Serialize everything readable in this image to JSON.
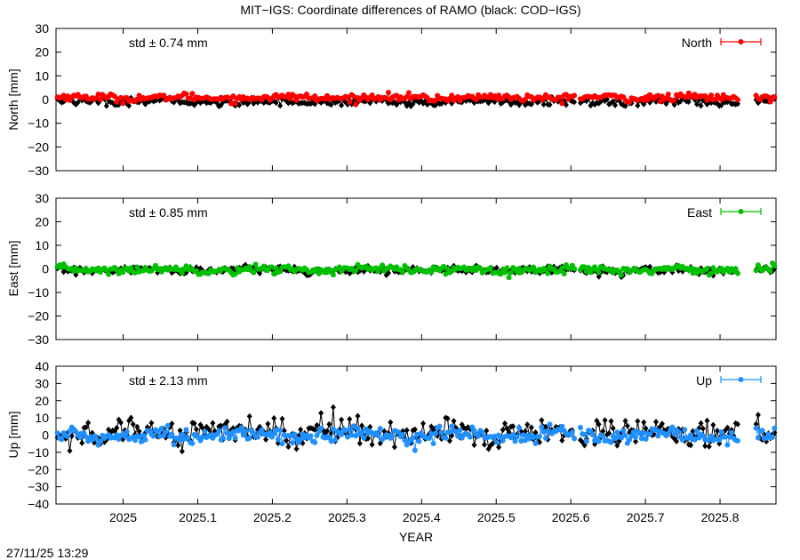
{
  "title": "MIT−IGS: Coordinate differences of RAMO (black: COD−IGS)",
  "xlabel": "YEAR",
  "timestamp": "27/11/25 13:29",
  "chart_data": [
    {
      "type": "line",
      "name": "north",
      "ylabel": "North [mm]",
      "legend": "North",
      "std_text": "std ± 0.74 mm",
      "color": "#ff0000",
      "legend_placement": "top-right",
      "xlim": [
        2024.91,
        2025.875
      ],
      "ylim": [
        -30,
        30
      ],
      "yticks": [
        -30,
        -20,
        -10,
        0,
        10,
        20,
        30
      ],
      "xticks": [
        2025,
        2025.1,
        2025.2,
        2025.3,
        2025.4,
        2025.5,
        2025.6,
        2025.7,
        2025.8
      ],
      "xticklabels": [
        "2025",
        "2025.1",
        "2025.2",
        "2025.3",
        "2025.4",
        "2025.5",
        "2025.6",
        "2025.7",
        "2025.8"
      ],
      "gaps": [
        [
          2025.605,
          2025.612
        ],
        [
          2025.826,
          2025.848
        ]
      ],
      "series": [
        {
          "name": "MIT−IGS",
          "color": "#ff0000",
          "level": 0.8,
          "amplitude": 0.74,
          "wave": 0.4
        },
        {
          "name": "COD−IGS",
          "color": "#000000",
          "level": -0.9,
          "amplitude": 0.8,
          "wave": 0.5
        }
      ]
    },
    {
      "type": "line",
      "name": "east",
      "ylabel": "East [mm]",
      "legend": "East",
      "std_text": "std ± 0.85 mm",
      "color": "#00c000",
      "legend_placement": "top-right",
      "xlim": [
        2024.91,
        2025.875
      ],
      "ylim": [
        -30,
        30
      ],
      "yticks": [
        -30,
        -20,
        -10,
        0,
        10,
        20,
        30
      ],
      "xticks": [
        2025,
        2025.1,
        2025.2,
        2025.3,
        2025.4,
        2025.5,
        2025.6,
        2025.7,
        2025.8
      ],
      "xticklabels": [
        "2025",
        "2025.1",
        "2025.2",
        "2025.3",
        "2025.4",
        "2025.5",
        "2025.6",
        "2025.7",
        "2025.8"
      ],
      "gaps": [
        [
          2025.605,
          2025.612
        ],
        [
          2025.826,
          2025.848
        ]
      ],
      "series": [
        {
          "name": "MIT−IGS",
          "color": "#00c000",
          "level": -0.3,
          "amplitude": 0.85,
          "wave": 0.4
        },
        {
          "name": "COD−IGS",
          "color": "#000000",
          "level": -0.5,
          "amplitude": 0.8,
          "wave": 0.4
        }
      ]
    },
    {
      "type": "line",
      "name": "up",
      "ylabel": "Up [mm]",
      "legend": "Up",
      "std_text": "std ± 2.13 mm",
      "color": "#1e90ff",
      "legend_placement": "top-right",
      "xlim": [
        2024.91,
        2025.875
      ],
      "ylim": [
        -40,
        40
      ],
      "yticks": [
        -40,
        -30,
        -20,
        -10,
        0,
        10,
        20,
        30,
        40
      ],
      "xticks": [
        2025,
        2025.1,
        2025.2,
        2025.3,
        2025.4,
        2025.5,
        2025.6,
        2025.7,
        2025.8
      ],
      "xticklabels": [
        "2025",
        "2025.1",
        "2025.2",
        "2025.3",
        "2025.4",
        "2025.5",
        "2025.6",
        "2025.7",
        "2025.8"
      ],
      "gaps": [
        [
          2025.605,
          2025.612
        ],
        [
          2025.826,
          2025.848
        ]
      ],
      "series": [
        {
          "name": "MIT−IGS",
          "color": "#1e90ff",
          "level": 0.0,
          "amplitude": 2.13,
          "wave": 1.5
        },
        {
          "name": "COD−IGS",
          "color": "#000000",
          "level": 1.0,
          "amplitude": 3.2,
          "wave": 2.0
        }
      ]
    }
  ]
}
